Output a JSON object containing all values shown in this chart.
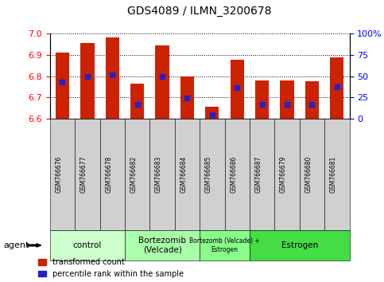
{
  "title": "GDS4089 / ILMN_3200678",
  "samples": [
    "GSM766676",
    "GSM766677",
    "GSM766678",
    "GSM766682",
    "GSM766683",
    "GSM766684",
    "GSM766685",
    "GSM766686",
    "GSM766687",
    "GSM766679",
    "GSM766680",
    "GSM766681"
  ],
  "bar_top": [
    6.913,
    6.955,
    6.982,
    6.765,
    6.947,
    6.8,
    6.655,
    6.878,
    6.778,
    6.778,
    6.775,
    6.888
  ],
  "bar_bottom": 6.6,
  "blue_marker": [
    6.773,
    6.8,
    6.807,
    6.668,
    6.8,
    6.698,
    6.618,
    6.745,
    6.668,
    6.668,
    6.668,
    6.75
  ],
  "group_definitions": [
    {
      "label": "control",
      "start": 0,
      "end": 3,
      "color": "#ccffcc"
    },
    {
      "label": "Bortezomib\n(Velcade)",
      "start": 3,
      "end": 6,
      "color": "#aaffaa"
    },
    {
      "label": "Bortezomb (Velcade) +\nEstrogen",
      "start": 6,
      "end": 8,
      "color": "#88ff88"
    },
    {
      "label": "Estrogen",
      "start": 8,
      "end": 12,
      "color": "#44dd44"
    }
  ],
  "ylim_left": [
    6.6,
    7.0
  ],
  "ylim_right": [
    0,
    100
  ],
  "yticks_left": [
    6.6,
    6.7,
    6.8,
    6.9,
    7.0
  ],
  "yticks_right": [
    0,
    25,
    50,
    75,
    100
  ],
  "bar_color": "#cc2200",
  "blue_color": "#2222cc",
  "plot_bg": "#e8e8e8",
  "tick_label_bg": "#d0d0d0",
  "legend_labels": [
    "transformed count",
    "percentile rank within the sample"
  ],
  "agent_label": "agent"
}
